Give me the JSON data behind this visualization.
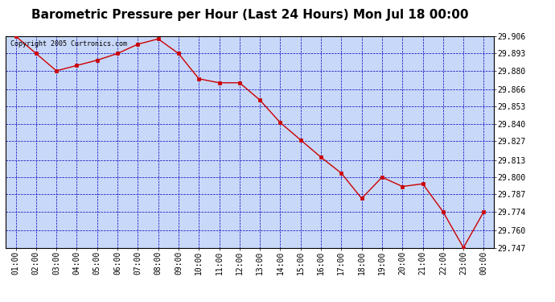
{
  "title": "Barometric Pressure per Hour (Last 24 Hours) Mon Jul 18 00:00",
  "copyright": "Copyright 2005 Curtronics.com",
  "hours": [
    "01:00",
    "02:00",
    "03:00",
    "04:00",
    "05:00",
    "06:00",
    "07:00",
    "08:00",
    "09:00",
    "10:00",
    "11:00",
    "12:00",
    "13:00",
    "14:00",
    "15:00",
    "16:00",
    "17:00",
    "18:00",
    "19:00",
    "20:00",
    "21:00",
    "22:00",
    "23:00",
    "00:00"
  ],
  "values": [
    29.906,
    29.893,
    29.88,
    29.884,
    29.888,
    29.893,
    29.9,
    29.904,
    29.893,
    29.874,
    29.871,
    29.871,
    29.858,
    29.841,
    29.828,
    29.815,
    29.803,
    29.784,
    29.8,
    29.793,
    29.795,
    29.774,
    29.747,
    29.774
  ],
  "ylim_min": 29.747,
  "ylim_max": 29.906,
  "yticks": [
    29.906,
    29.893,
    29.88,
    29.866,
    29.853,
    29.84,
    29.827,
    29.813,
    29.8,
    29.787,
    29.774,
    29.76,
    29.747
  ],
  "line_color": "#cc0000",
  "marker_color": "#cc0000",
  "plot_bg_color": "#c8d8f8",
  "grid_color": "#0000bb",
  "title_fontsize": 11,
  "copyright_fontsize": 6,
  "tick_fontsize": 7
}
